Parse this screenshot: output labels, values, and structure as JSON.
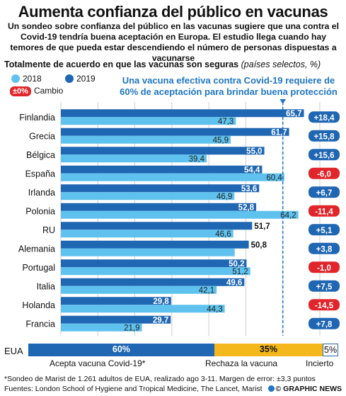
{
  "title": "Aumenta confianza del público en vacunas",
  "subtitle": "Un sondeo sobre confianza del público en las vacunas sugiere que una contra el Covid-19 tendría buena aceptación en Europa. El estudio llega cuando hay temores de que pueda estar descendiendo el número de personas dispuestas a vacunarse",
  "chart_heading": "Totalmente de acuerdo en que las vacunas son seguras",
  "chart_heading_sub": "(países selectos, %)",
  "legend": {
    "y2018": "2018",
    "y2019": "2019",
    "change_chip": "±0%",
    "change_label": "Cambio"
  },
  "callout": "Una vacuna efectiva contra Covid-19 requiere de 60% de aceptación para brindar buena protección",
  "colors": {
    "y2018": "#5fc2ee",
    "y2019": "#1f66b3",
    "positive": "#1f66b3",
    "negative": "#e0262b",
    "threshold": "#1f76c4",
    "accept": "#1f66b3",
    "reject": "#f5b81c",
    "unsure": "#ffffff"
  },
  "chart_data": {
    "type": "bar",
    "orientation": "horizontal",
    "categories": [
      "Finlandia",
      "Grecia",
      "Bélgica",
      "España",
      "Irlanda",
      "Polonia",
      "RU",
      "Alemania",
      "Portugal",
      "Italia",
      "Holanda",
      "Francia"
    ],
    "series": [
      {
        "name": "2018",
        "values": [
          47.3,
          45.9,
          39.4,
          60.4,
          46.9,
          64.2,
          46.6,
          47.0,
          51.2,
          42.1,
          44.3,
          21.9
        ]
      },
      {
        "name": "2019",
        "values": [
          65.7,
          61.7,
          55.0,
          54.4,
          53.6,
          52.8,
          51.7,
          50.8,
          50.2,
          49.6,
          29.8,
          29.7
        ]
      }
    ],
    "labels_2018": [
      "47,3",
      "45,9",
      "39,4",
      "60,4",
      "46,9",
      "64,2",
      "46,6",
      "",
      "51,2",
      "42,1",
      "44,3",
      "21,9"
    ],
    "labels_2019": [
      "65,7",
      "61,7",
      "55,0",
      "54,4",
      "53,6",
      "52,8",
      "51,7",
      "50,8",
      "50,2",
      "49,6",
      "29,8",
      "29,7"
    ],
    "change": [
      "+18,4",
      "+15,8",
      "+15,6",
      "-6,0",
      "+6,7",
      "-11,4",
      "+5,1",
      "+3,8",
      "-1,0",
      "+7,5",
      "-14,5",
      "+7,8"
    ],
    "change_values": [
      18.4,
      15.8,
      15.6,
      -6.0,
      6.7,
      -11.4,
      5.1,
      3.8,
      -1.0,
      7.5,
      -14.5,
      7.8
    ],
    "xlim": [
      0,
      70
    ],
    "xticks": [
      "0",
      "10",
      "20",
      "30",
      "40",
      "50",
      "60",
      "70"
    ],
    "threshold": 60,
    "grid": true
  },
  "eua": {
    "label": "EUA",
    "accept_pct": "60%",
    "reject_pct": "35%",
    "unsure_pct": "5%",
    "accept_value": 60,
    "reject_value": 35,
    "unsure_value": 5,
    "accept_label": "Acepta vacuna Covid-19*",
    "reject_label": "Rechaza la vacuna",
    "unsure_label": "Incierto"
  },
  "footnote": "*Sondeo de Marist de 1.261 adultos de EUA, realizado ago 3-11. Margen de error: ±3,3 puntos",
  "sources": "Fuentes: London School of Hygiene and Tropical Medicine, The Lancet, Marist",
  "brand": "© GRAPHIC NEWS"
}
